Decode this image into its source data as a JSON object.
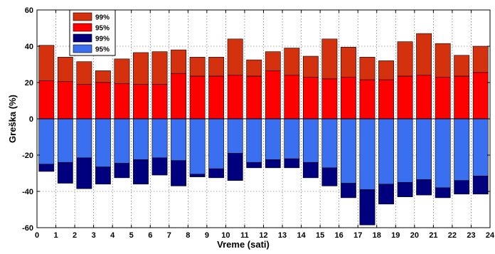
{
  "chart_data": {
    "type": "bar",
    "xlabel": "Vreme (sati)",
    "ylabel": "Greška (%)",
    "xlim": [
      0,
      24
    ],
    "ylim": [
      -60,
      60
    ],
    "x_ticks": [
      "0",
      "1",
      "2",
      "3",
      "4",
      "5",
      "6",
      "7",
      "8",
      "9",
      "10",
      "11",
      "12",
      "13",
      "14",
      "15",
      "16",
      "17",
      "18",
      "19",
      "20",
      "21",
      "22",
      "23",
      "24"
    ],
    "y_ticks": [
      "60",
      "40",
      "20",
      "0",
      "-20",
      "-40",
      "-60"
    ],
    "grid": true,
    "legend_position": "top-left",
    "hours": [
      1,
      2,
      3,
      4,
      5,
      6,
      7,
      8,
      9,
      10,
      11,
      12,
      13,
      14,
      15,
      16,
      17,
      18,
      19,
      20,
      21,
      22,
      23,
      24
    ],
    "series": [
      {
        "name": "99%",
        "color": "#d4310f",
        "values": [
          40.5,
          34,
          31.5,
          26.5,
          33,
          36.5,
          37,
          38,
          34,
          34,
          44,
          32.5,
          37,
          39,
          34.5,
          44,
          39.5,
          34,
          32,
          42.5,
          47,
          41.5,
          35,
          40
        ]
      },
      {
        "name": "95%",
        "color": "#ff0000",
        "values": [
          21,
          20.5,
          19,
          20,
          19.5,
          19,
          19,
          25,
          23.5,
          23.5,
          24,
          23.5,
          26.5,
          24,
          23,
          22,
          23,
          21.5,
          21.5,
          23.5,
          24,
          23,
          23.5,
          25.5
        ]
      },
      {
        "name": "99%",
        "color": "#00007f",
        "values": [
          -29,
          -35.5,
          -38.5,
          -36,
          -32.5,
          -36,
          -31,
          -37,
          -32,
          -32.5,
          -34,
          -27,
          -27,
          -27,
          -32.5,
          -37,
          -43.5,
          -58.5,
          -47,
          -43,
          -42,
          -43.5,
          -41.5,
          -41.5
        ]
      },
      {
        "name": "95%",
        "color": "#3a6ff0",
        "values": [
          -25,
          -24,
          -21.5,
          -26.5,
          -24.5,
          -22.5,
          -21.5,
          -23,
          -30.5,
          -27.5,
          -19,
          -24,
          -22.5,
          -22,
          -24,
          -27,
          -35.5,
          -39,
          -36,
          -35,
          -33.5,
          -38,
          -34,
          -31.5
        ]
      }
    ]
  }
}
